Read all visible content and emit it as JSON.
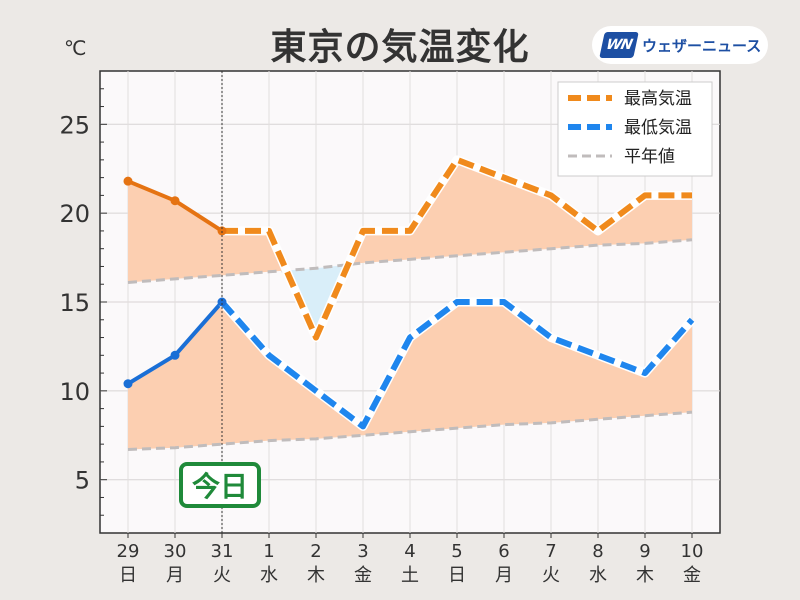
{
  "title": "東京の気温変化",
  "unit": "℃",
  "logo": {
    "mark": "WN",
    "text": "ウェザーニュース"
  },
  "today_label": "今日",
  "colors": {
    "high": "#f08a1c",
    "high_past": "#e57312",
    "low": "#1f86ee",
    "low_past": "#1a6fd6",
    "normal": "#c0bcbc",
    "fill_above": "#fccfb1",
    "fill_below": "#d9eef9",
    "sun": "#e5343a",
    "sat": "#2d8ad8",
    "today_green": "#1f8a3a"
  },
  "chart_data": {
    "type": "line",
    "ylim": [
      2,
      28
    ],
    "yticks": [
      5,
      10,
      15,
      20,
      25
    ],
    "categories": [
      {
        "day": "29",
        "dow": "日",
        "color": "sun"
      },
      {
        "day": "30",
        "dow": "月",
        "color": "normal"
      },
      {
        "day": "31",
        "dow": "火",
        "color": "normal"
      },
      {
        "day": "1",
        "dow": "水",
        "color": "normal"
      },
      {
        "day": "2",
        "dow": "木",
        "color": "normal"
      },
      {
        "day": "3",
        "dow": "金",
        "color": "normal"
      },
      {
        "day": "4",
        "dow": "土",
        "color": "sat"
      },
      {
        "day": "5",
        "dow": "日",
        "color": "sun"
      },
      {
        "day": "6",
        "dow": "月",
        "color": "normal"
      },
      {
        "day": "7",
        "dow": "火",
        "color": "normal"
      },
      {
        "day": "8",
        "dow": "水",
        "color": "normal"
      },
      {
        "day": "9",
        "dow": "木",
        "color": "normal"
      },
      {
        "day": "10",
        "dow": "金",
        "color": "normal"
      }
    ],
    "today_index": 2,
    "series": [
      {
        "name": "最高気温",
        "values": [
          21.8,
          20.7,
          19,
          19,
          13,
          19,
          19,
          23,
          22,
          21,
          19,
          21,
          21
        ]
      },
      {
        "name": "最低気温",
        "values": [
          10.4,
          12,
          15,
          12,
          10,
          8,
          13,
          15,
          15,
          13,
          12,
          11,
          14
        ]
      },
      {
        "name": "平年値",
        "high": [
          16.1,
          16.3,
          16.5,
          16.7,
          16.9,
          17.2,
          17.4,
          17.6,
          17.8,
          18.0,
          18.2,
          18.3,
          18.5
        ],
        "low": [
          6.7,
          6.8,
          7.0,
          7.2,
          7.3,
          7.5,
          7.7,
          7.9,
          8.1,
          8.2,
          8.4,
          8.6,
          8.8
        ]
      }
    ],
    "legend_position": "top-right",
    "grid": true
  }
}
